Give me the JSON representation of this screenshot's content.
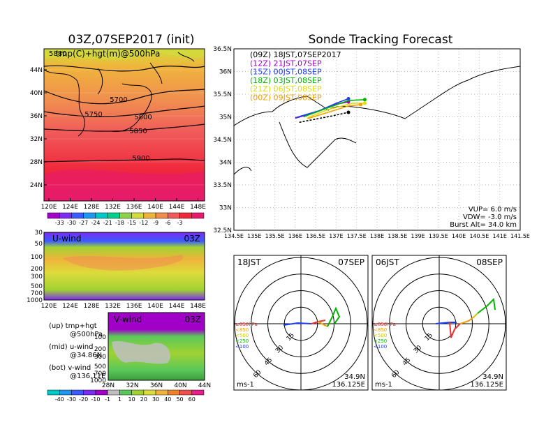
{
  "left_title": "03Z,07SEP2017 (init)",
  "right_title": "Sonde Tracking Forecast",
  "temp_map": {
    "subtitle": "tmp(C)+hgt(m)@500hPa",
    "corner_label": "5880",
    "lat_labels": [
      "44N",
      "40N",
      "36N",
      "32N",
      "28N",
      "24N"
    ],
    "lon_labels": [
      "120E",
      "124E",
      "128E",
      "132E",
      "136E",
      "140E",
      "144E",
      "148E"
    ],
    "contour_labels": [
      "5700",
      "5750",
      "5800",
      "5850",
      "5900"
    ],
    "colorbar_labels": [
      "-33",
      "-30",
      "-27",
      "-24",
      "-21",
      "-18",
      "-15",
      "-12",
      "-9",
      "-6",
      "-3"
    ],
    "colorbar_colors": [
      "#a000c8",
      "#7a2cf0",
      "#3c5cff",
      "#1e96f0",
      "#00c8c8",
      "#00d08c",
      "#8cd24a",
      "#d2dc3c",
      "#f0b43c",
      "#f08c50",
      "#f05a5a",
      "#f0283c",
      "#e6196e"
    ]
  },
  "u_wind": {
    "label": "U-wind",
    "time": "03Z",
    "p_labels": [
      "30",
      "50",
      "100",
      "200",
      "300",
      "500",
      "700",
      "1000"
    ],
    "lon_labels": [
      "120E",
      "124E",
      "128E",
      "132E",
      "136E",
      "140E",
      "144E",
      "148E"
    ]
  },
  "v_wind": {
    "label": "V-wind",
    "time": "03Z",
    "p_labels": [
      "30",
      "50",
      "100",
      "200",
      "300",
      "500",
      "700",
      "1000"
    ],
    "lat_labels": [
      "28N",
      "32N",
      "36N",
      "40N",
      "44N"
    ]
  },
  "legend_text": [
    "(up) tmp+hgt",
    "@500hPa",
    "(mid) u-wind",
    "@34.86N",
    "(bot) v-wind",
    "@136.11E"
  ],
  "wind_colorbar": {
    "labels": [
      "-40",
      "-30",
      "-20",
      "-10",
      "-1",
      "1",
      "10",
      "20",
      "30",
      "40",
      "50",
      "60"
    ],
    "colors": [
      "#00c8c8",
      "#1e96f0",
      "#3c5cff",
      "#7a2cf0",
      "#a000c8",
      "#c0c0c0",
      "#5ac85a",
      "#a0d232",
      "#dcdc3c",
      "#f0b43c",
      "#f08228",
      "#f05050",
      "#e61e8c"
    ]
  },
  "track_map": {
    "lat_labels": [
      "36.5N",
      "36N",
      "35.5N",
      "35N",
      "34.5N",
      "34N",
      "33.5N",
      "33N",
      "32.5N"
    ],
    "lon_labels": [
      "134.5E",
      "135E",
      "135.5E",
      "136E",
      "136.5E",
      "137E",
      "137.5E",
      "138E",
      "138.5E",
      "139E",
      "139.5E",
      "140E",
      "140.5E",
      "141E",
      "141.5E"
    ],
    "legend": [
      {
        "text": "(09Z)  18JST,07SEP2017",
        "color": "#000000"
      },
      {
        "text": "(12Z)  21JST,07SEP",
        "color": "#a000c8"
      },
      {
        "text": "(15Z)  00JST,08SEP",
        "color": "#1e3cff"
      },
      {
        "text": "(18Z)  03JST,08SEP",
        "color": "#00b400"
      },
      {
        "text": "(21Z)  06JST,08SEP",
        "color": "#dcdc00"
      },
      {
        "text": "(00Z)  09JST,08SEP",
        "color": "#f0a000"
      }
    ],
    "params": [
      "VUP=  6.0  m/s",
      "VDW= -3.0  m/s",
      "Burst Alt=  34.0  km"
    ]
  },
  "polar_left": {
    "time": "18JST",
    "date": "07SEP",
    "ring_labels": [
      "15",
      "30",
      "45",
      "60"
    ],
    "unit": "ms-1",
    "lat": "34.9N",
    "lon": "136.125E",
    "levels": [
      {
        "text": "≥850hPa",
        "color": "#e63232"
      },
      {
        "text": "<850",
        "color": "#f0a000"
      },
      {
        "text": "<500",
        "color": "#c8c800"
      },
      {
        "text": "<250",
        "color": "#00b400"
      },
      {
        "text": "<100",
        "color": "#1e3cff"
      }
    ]
  },
  "polar_right": {
    "time": "06JST",
    "date": "08SEP",
    "ring_labels": [
      "15",
      "30",
      "45",
      "60"
    ],
    "unit": "ms-1",
    "lat": "34.9N",
    "lon": "136.125E",
    "levels": [
      {
        "text": "≥850hPa",
        "color": "#e63232"
      },
      {
        "text": "<850",
        "color": "#f0a000"
      },
      {
        "text": "<500",
        "color": "#c8c800"
      },
      {
        "text": "<250",
        "color": "#00b400"
      },
      {
        "text": "<100",
        "color": "#1e3cff"
      }
    ]
  },
  "chart_data": [
    {
      "type": "heatmap",
      "title": "tmp(C)+hgt(m)@500hPa",
      "xlim": [
        120,
        150
      ],
      "ylim": [
        22,
        47
      ],
      "contours": [
        5700,
        5750,
        5800,
        5850,
        5900
      ],
      "colorbar": [
        -33,
        -30,
        -27,
        -24,
        -21,
        -18,
        -15,
        -12,
        -9,
        -6,
        -3
      ]
    },
    {
      "type": "heatmap",
      "title": "U-wind",
      "xlim": [
        120,
        150
      ],
      "y_levels_hPa": [
        30,
        50,
        100,
        200,
        300,
        500,
        700,
        1000
      ]
    },
    {
      "type": "heatmap",
      "title": "V-wind",
      "xlim": [
        28,
        44
      ],
      "y_levels_hPa": [
        30,
        50,
        100,
        200,
        300,
        500,
        700,
        1000
      ],
      "colorbar": [
        -40,
        -30,
        -20,
        -10,
        -1,
        1,
        10,
        20,
        30,
        40,
        50,
        60
      ]
    },
    {
      "type": "line",
      "title": "Sonde Tracking Forecast",
      "xlim": [
        134.5,
        141.5
      ],
      "ylim": [
        32.5,
        36.5
      ],
      "series": [
        {
          "name": "(09Z) 18JST,07SEP2017",
          "x": [
            136.1,
            136.5,
            136.9,
            137.3
          ],
          "y": [
            34.88,
            34.95,
            35.02,
            35.1
          ]
        },
        {
          "name": "(12Z) 21JST,07SEP",
          "x": [
            136.0,
            136.5,
            137.0,
            137.3
          ],
          "y": [
            34.97,
            35.1,
            35.28,
            35.33
          ]
        },
        {
          "name": "(15Z) 00JST,08SEP",
          "x": [
            136.0,
            136.6,
            137.0,
            137.3
          ],
          "y": [
            34.98,
            35.14,
            35.3,
            35.4
          ]
        },
        {
          "name": "(18Z) 03JST,08SEP",
          "x": [
            136.2,
            136.8,
            137.3,
            137.7
          ],
          "y": [
            35.0,
            35.2,
            35.36,
            35.38
          ]
        },
        {
          "name": "(21Z) 06JST,08SEP",
          "x": [
            136.3,
            136.8,
            137.4,
            137.7
          ],
          "y": [
            34.98,
            35.16,
            35.3,
            35.3
          ]
        },
        {
          "name": "(00Z) 09JST,08SEP",
          "x": [
            136.3,
            136.8,
            137.3,
            137.6
          ],
          "y": [
            34.96,
            35.1,
            35.24,
            35.27
          ]
        }
      ]
    }
  ]
}
